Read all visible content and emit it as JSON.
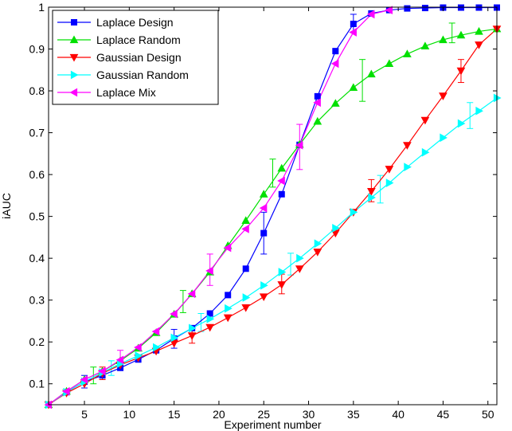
{
  "chart_data": {
    "type": "line",
    "title": "",
    "xlabel": "Experiment number",
    "ylabel": "iAUC",
    "xlim": [
      1,
      51
    ],
    "ylim": [
      0.05,
      1.0
    ],
    "grid": false,
    "legend_position": "top-left",
    "xticks": [
      5,
      10,
      15,
      20,
      25,
      30,
      35,
      40,
      45,
      50
    ],
    "yticks": [
      0.1,
      0.2,
      0.3,
      0.4,
      0.5,
      0.6,
      0.7,
      0.8,
      0.9,
      1
    ],
    "xtick_labels": [
      "5",
      "10",
      "15",
      "20",
      "25",
      "30",
      "35",
      "40",
      "45",
      "50"
    ],
    "ytick_labels": [
      "0.1",
      "0.2",
      "0.3",
      "0.4",
      "0.5",
      "0.6",
      "0.7",
      "0.8",
      "0.9",
      "1"
    ],
    "series": [
      {
        "name": "Laplace Design",
        "color": "#0000ff",
        "marker": "square",
        "x": [
          1,
          3,
          5,
          7,
          9,
          11,
          13,
          15,
          17,
          19,
          21,
          23,
          25,
          27,
          29,
          31,
          33,
          35,
          37,
          39,
          41,
          43,
          45,
          47,
          49,
          51
        ],
        "y": [
          0.05,
          0.08,
          0.105,
          0.12,
          0.138,
          0.158,
          0.18,
          0.208,
          0.233,
          0.268,
          0.312,
          0.375,
          0.46,
          0.553,
          0.671,
          0.787,
          0.895,
          0.96,
          0.985,
          0.993,
          0.997,
          0.998,
          0.999,
          0.999,
          0.999,
          0.999
        ],
        "error_bars": [
          {
            "x": 5,
            "low": 0.09,
            "high": 0.12
          },
          {
            "x": 15,
            "low": 0.185,
            "high": 0.23
          },
          {
            "x": 25,
            "low": 0.41,
            "high": 0.51
          },
          {
            "x": 35,
            "low": 0.94,
            "high": 0.983
          }
        ]
      },
      {
        "name": "Laplace Random",
        "color": "#00e000",
        "marker": "triangle-up",
        "x": [
          1,
          3,
          5,
          7,
          9,
          11,
          13,
          15,
          17,
          19,
          21,
          23,
          25,
          27,
          29,
          31,
          33,
          35,
          37,
          39,
          41,
          43,
          45,
          47,
          49,
          51
        ],
        "y": [
          0.05,
          0.082,
          0.11,
          0.13,
          0.155,
          0.185,
          0.222,
          0.266,
          0.315,
          0.367,
          0.43,
          0.49,
          0.553,
          0.615,
          0.672,
          0.727,
          0.77,
          0.808,
          0.84,
          0.865,
          0.888,
          0.907,
          0.922,
          0.933,
          0.942,
          0.948
        ],
        "error_bars": [
          {
            "x": 6,
            "low": 0.1,
            "high": 0.14
          },
          {
            "x": 16,
            "low": 0.27,
            "high": 0.323
          },
          {
            "x": 26,
            "low": 0.57,
            "high": 0.637
          },
          {
            "x": 36,
            "low": 0.775,
            "high": 0.875
          },
          {
            "x": 46,
            "low": 0.915,
            "high": 0.962
          }
        ]
      },
      {
        "name": "Gaussian Design",
        "color": "#ff0000",
        "marker": "triangle-down",
        "x": [
          1,
          3,
          5,
          7,
          9,
          11,
          13,
          15,
          17,
          19,
          21,
          23,
          25,
          27,
          29,
          31,
          33,
          35,
          37,
          39,
          41,
          43,
          45,
          47,
          49,
          51
        ],
        "y": [
          0.05,
          0.078,
          0.1,
          0.125,
          0.145,
          0.162,
          0.178,
          0.197,
          0.215,
          0.235,
          0.258,
          0.282,
          0.308,
          0.337,
          0.375,
          0.415,
          0.46,
          0.51,
          0.56,
          0.613,
          0.67,
          0.73,
          0.788,
          0.848,
          0.91,
          0.948
        ],
        "error_bars": [
          {
            "x": 7,
            "low": 0.11,
            "high": 0.14
          },
          {
            "x": 17,
            "low": 0.197,
            "high": 0.232
          },
          {
            "x": 27,
            "low": 0.315,
            "high": 0.362
          },
          {
            "x": 37,
            "low": 0.535,
            "high": 0.588
          },
          {
            "x": 47,
            "low": 0.82,
            "high": 0.875
          }
        ]
      },
      {
        "name": "Gaussian Random",
        "color": "#00ffff",
        "marker": "triangle-right",
        "x": [
          1,
          3,
          5,
          7,
          9,
          11,
          13,
          15,
          17,
          19,
          21,
          23,
          25,
          27,
          29,
          31,
          33,
          35,
          37,
          39,
          41,
          43,
          45,
          47,
          49,
          51
        ],
        "y": [
          0.05,
          0.08,
          0.105,
          0.127,
          0.148,
          0.167,
          0.187,
          0.21,
          0.233,
          0.255,
          0.28,
          0.306,
          0.335,
          0.367,
          0.4,
          0.435,
          0.472,
          0.51,
          0.545,
          0.58,
          0.618,
          0.653,
          0.688,
          0.722,
          0.752,
          0.783
        ],
        "error_bars": [
          {
            "x": 8,
            "low": 0.12,
            "high": 0.155
          },
          {
            "x": 18,
            "low": 0.225,
            "high": 0.268
          },
          {
            "x": 28,
            "low": 0.36,
            "high": 0.412
          },
          {
            "x": 38,
            "low": 0.532,
            "high": 0.598
          },
          {
            "x": 48,
            "low": 0.71,
            "high": 0.772
          }
        ]
      },
      {
        "name": "Laplace Mix",
        "color": "#ff00ff",
        "marker": "triangle-left",
        "x": [
          1,
          3,
          5,
          7,
          9,
          11,
          13,
          15,
          17,
          19,
          21,
          23,
          25,
          27,
          29,
          31,
          33,
          35,
          37,
          39
        ],
        "y": [
          0.05,
          0.082,
          0.11,
          0.13,
          0.157,
          0.187,
          0.225,
          0.267,
          0.315,
          0.37,
          0.425,
          0.47,
          0.52,
          0.585,
          0.67,
          0.772,
          0.865,
          0.94,
          0.983,
          0.993
        ],
        "error_bars": [
          {
            "x": 9,
            "low": 0.135,
            "high": 0.18
          },
          {
            "x": 19,
            "low": 0.335,
            "high": 0.41
          },
          {
            "x": 29,
            "low": 0.612,
            "high": 0.72
          }
        ]
      }
    ]
  }
}
